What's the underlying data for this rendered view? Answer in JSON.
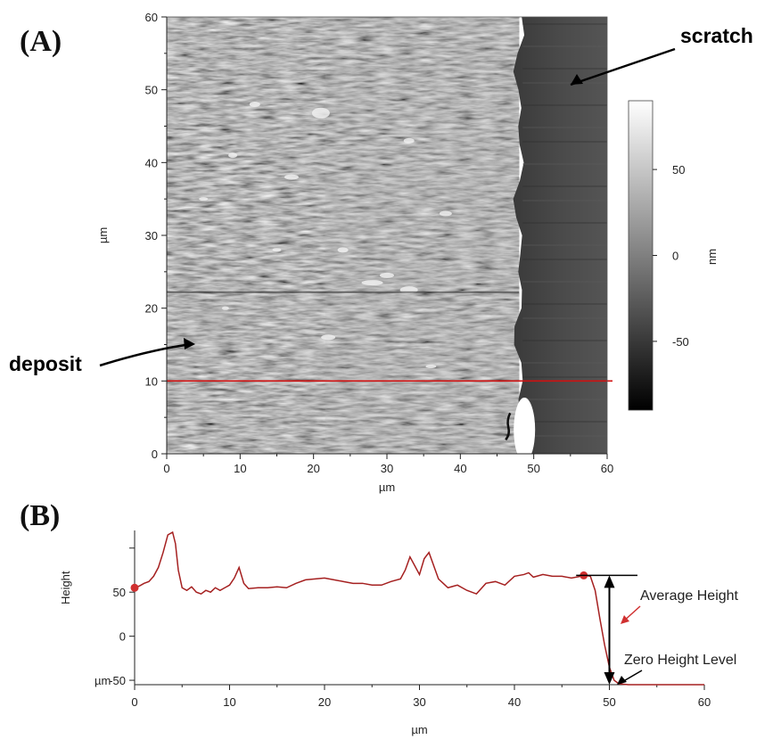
{
  "panels": {
    "a_label": "(A)",
    "b_label": "(B)"
  },
  "annotations": {
    "scratch": "scratch",
    "deposit": "deposit"
  },
  "chart_data": [
    {
      "type": "heatmap",
      "id": "A",
      "xlabel": "µm",
      "ylabel": "µm",
      "xlim": [
        0,
        60
      ],
      "ylim": [
        0,
        60
      ],
      "x_ticks": [
        0,
        10,
        20,
        30,
        40,
        50,
        60
      ],
      "y_ticks": [
        0,
        10,
        20,
        30,
        40,
        50,
        60
      ],
      "colorbar": {
        "label": "nm",
        "range": [
          -90,
          90
        ],
        "ticks": [
          50,
          0,
          -50
        ]
      },
      "deposit_edge_um": 48,
      "profile_line_y_um": 10,
      "line_color": "#d01010"
    },
    {
      "type": "line",
      "id": "B",
      "xlabel": "µm",
      "ylabel": "Height",
      "xlim": [
        0,
        60
      ],
      "ylim": [
        -55,
        120
      ],
      "x_ticks": [
        0,
        10,
        20,
        30,
        40,
        50,
        60
      ],
      "y_ticks": [
        50,
        0,
        -50
      ],
      "y_tick_labels": [
        "50",
        "0",
        "-50"
      ],
      "y_unit_label": "µm",
      "series": [
        {
          "color": "#a52020",
          "x": [
            0,
            0.5,
            1,
            1.5,
            2,
            2.5,
            3,
            3.5,
            4,
            4.3,
            4.6,
            5,
            5.5,
            6,
            6.5,
            7,
            7.5,
            8,
            8.5,
            9,
            9.5,
            10,
            10.5,
            11,
            11.5,
            12,
            13,
            14,
            15,
            16,
            17,
            18,
            19,
            20,
            21,
            22,
            23,
            24,
            25,
            26,
            27,
            28,
            28.5,
            29,
            29.5,
            30,
            30.5,
            31,
            31.5,
            32,
            32.5,
            33,
            34,
            35,
            36,
            37,
            38,
            39,
            40,
            41,
            41.5,
            42,
            43,
            44,
            45,
            46,
            47,
            47.5,
            48,
            48.5,
            49,
            49.5,
            50,
            50.5,
            51,
            52,
            54,
            56,
            58,
            60
          ],
          "y": [
            55,
            57,
            60,
            62,
            68,
            78,
            95,
            115,
            118,
            105,
            75,
            55,
            52,
            56,
            50,
            48,
            52,
            50,
            55,
            52,
            55,
            58,
            66,
            78,
            60,
            54,
            55,
            55,
            56,
            55,
            60,
            64,
            65,
            66,
            64,
            62,
            60,
            60,
            58,
            58,
            62,
            65,
            75,
            90,
            80,
            70,
            88,
            95,
            80,
            65,
            60,
            55,
            58,
            52,
            48,
            60,
            62,
            58,
            68,
            70,
            72,
            67,
            70,
            68,
            68,
            66,
            68,
            69,
            68,
            52,
            20,
            -10,
            -35,
            -50,
            -54,
            -55,
            -55,
            -55,
            -55,
            -55
          ]
        }
      ],
      "markers": [
        {
          "x": 0,
          "y": 55
        },
        {
          "x": 47.3,
          "y": 69
        }
      ],
      "annotations": {
        "average_height": "Average Height",
        "zero_height": "Zero Height Level"
      }
    }
  ]
}
